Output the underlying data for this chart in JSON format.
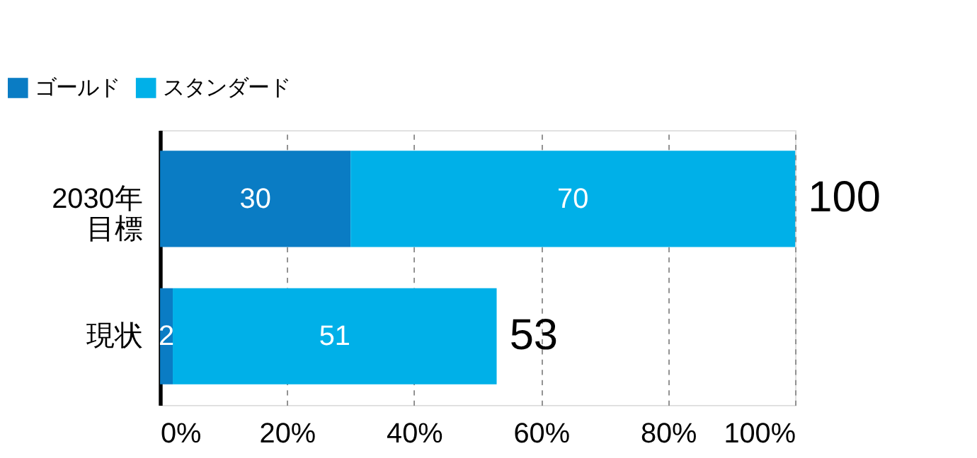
{
  "chart_data": {
    "type": "bar",
    "orientation": "horizontal",
    "stacked": true,
    "categories": [
      "2030年目標",
      "現状"
    ],
    "series": [
      {
        "name": "ゴールド",
        "color": "#0a7cc4",
        "values": [
          30,
          2
        ]
      },
      {
        "name": "スタンダード",
        "color": "#00b0e8",
        "values": [
          70,
          51
        ]
      }
    ],
    "data_labels": true,
    "totals": [
      "100",
      "53"
    ],
    "xlim": [
      0,
      100
    ],
    "xticks": [
      {
        "value": 0,
        "label": "0%"
      },
      {
        "value": 20,
        "label": "20%"
      },
      {
        "value": 40,
        "label": "40%"
      },
      {
        "value": 60,
        "label": "60%"
      },
      {
        "value": 80,
        "label": "80%"
      },
      {
        "value": 100,
        "label": "100%"
      }
    ],
    "grid": "x",
    "legend": "top left"
  }
}
